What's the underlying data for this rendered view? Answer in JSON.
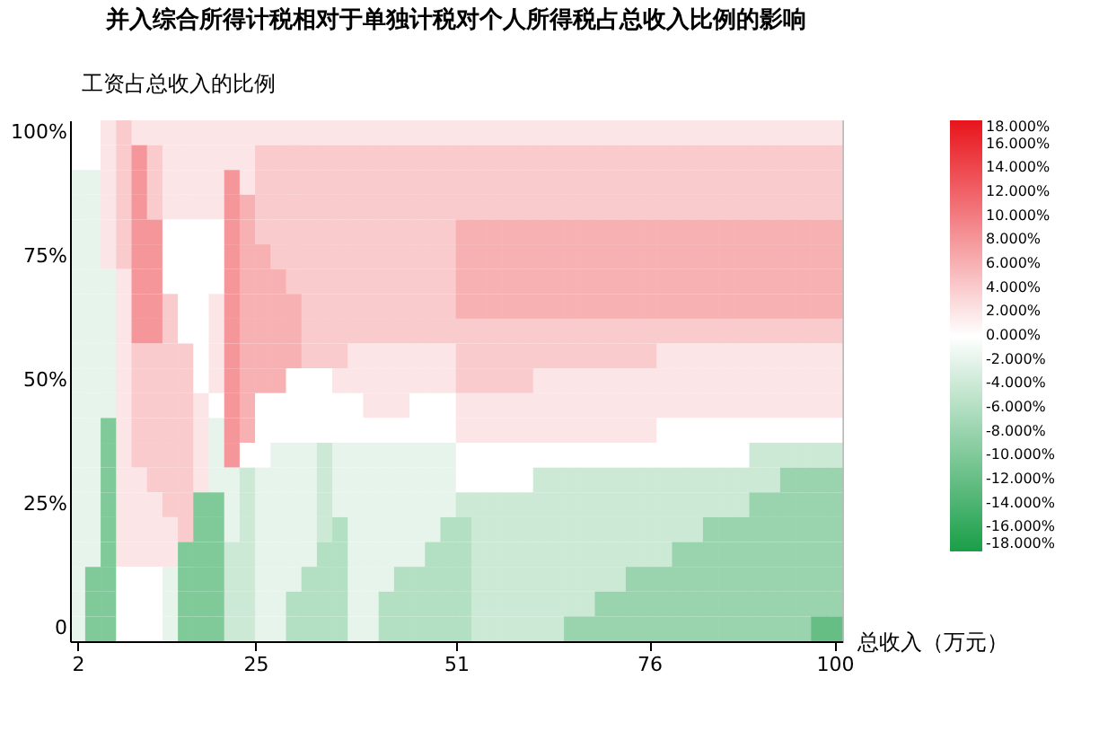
{
  "chart_data": {
    "type": "heatmap",
    "title": "并入综合所得计税相对于单独计税对个人所得税占总收入比例的影响",
    "xlabel": "总收入（万元）",
    "ylabel": "工资占总收入的比例",
    "x": [
      2,
      4,
      6,
      8,
      10,
      12,
      14,
      16,
      18,
      20,
      22,
      24,
      26,
      28,
      30,
      32,
      34,
      36,
      38,
      40,
      42,
      44,
      46,
      48,
      50,
      52,
      54,
      56,
      58,
      60,
      62,
      64,
      66,
      68,
      70,
      72,
      74,
      76,
      78,
      80,
      82,
      84,
      86,
      88,
      90,
      92,
      94,
      96,
      98,
      100
    ],
    "xlim": [
      1,
      101
    ],
    "xticks": [
      2,
      25,
      51,
      76,
      100
    ],
    "y_categories": [
      "100%",
      null,
      null,
      null,
      null,
      "75%",
      null,
      null,
      null,
      null,
      "50%",
      null,
      null,
      null,
      null,
      "25%",
      null,
      null,
      null,
      null,
      "0"
    ],
    "cells": [
      [
        0,
        0,
        2,
        4,
        2,
        2,
        2,
        2,
        2,
        2,
        2,
        2,
        2,
        2,
        2,
        2,
        2,
        2,
        2,
        2,
        2,
        2,
        2,
        2,
        2,
        2,
        2,
        2,
        2,
        2,
        2,
        2,
        2,
        2,
        2,
        2,
        2,
        2,
        2,
        2,
        2,
        2,
        2,
        2,
        2,
        2,
        2,
        2,
        2,
        2
      ],
      [
        0,
        0,
        2,
        4,
        8,
        4,
        2,
        2,
        2,
        2,
        2,
        2,
        4,
        4,
        4,
        4,
        4,
        4,
        4,
        4,
        4,
        4,
        4,
        4,
        4,
        4,
        4,
        4,
        4,
        4,
        4,
        4,
        4,
        4,
        4,
        4,
        4,
        4,
        4,
        4,
        4,
        4,
        4,
        4,
        4,
        4,
        4,
        4,
        4,
        4
      ],
      [
        -2,
        -2,
        2,
        4,
        8,
        4,
        2,
        2,
        2,
        2,
        8,
        2,
        4,
        4,
        4,
        4,
        4,
        4,
        4,
        4,
        4,
        4,
        4,
        4,
        4,
        4,
        4,
        4,
        4,
        4,
        4,
        4,
        4,
        4,
        4,
        4,
        4,
        4,
        4,
        4,
        4,
        4,
        4,
        4,
        4,
        4,
        4,
        4,
        4,
        4
      ],
      [
        -2,
        -2,
        2,
        4,
        8,
        4,
        2,
        2,
        2,
        2,
        8,
        6,
        4,
        4,
        4,
        4,
        4,
        4,
        4,
        4,
        4,
        4,
        4,
        4,
        4,
        4,
        4,
        4,
        4,
        4,
        4,
        4,
        4,
        4,
        4,
        4,
        4,
        4,
        4,
        4,
        4,
        4,
        4,
        4,
        4,
        4,
        4,
        4,
        4,
        4
      ],
      [
        -2,
        -2,
        2,
        4,
        8,
        8,
        0,
        0,
        0,
        0,
        8,
        6,
        4,
        4,
        4,
        4,
        4,
        4,
        4,
        4,
        4,
        4,
        4,
        4,
        4,
        6,
        6,
        6,
        6,
        6,
        6,
        6,
        6,
        6,
        6,
        6,
        6,
        6,
        6,
        6,
        6,
        6,
        6,
        6,
        6,
        6,
        6,
        6,
        6,
        6
      ],
      [
        -2,
        -2,
        2,
        4,
        8,
        8,
        0,
        0,
        0,
        0,
        8,
        6,
        6,
        4,
        4,
        4,
        4,
        4,
        4,
        4,
        4,
        4,
        4,
        4,
        4,
        6,
        6,
        6,
        6,
        6,
        6,
        6,
        6,
        6,
        6,
        6,
        6,
        6,
        6,
        6,
        6,
        6,
        6,
        6,
        6,
        6,
        6,
        6,
        6,
        6
      ],
      [
        -2,
        -2,
        -2,
        2,
        8,
        8,
        0,
        0,
        0,
        0,
        8,
        6,
        6,
        6,
        4,
        4,
        4,
        4,
        4,
        4,
        4,
        4,
        4,
        4,
        4,
        6,
        6,
        6,
        6,
        6,
        6,
        6,
        6,
        6,
        6,
        6,
        6,
        6,
        6,
        6,
        6,
        6,
        6,
        6,
        6,
        6,
        6,
        6,
        6,
        6
      ],
      [
        -2,
        -2,
        -2,
        2,
        8,
        8,
        4,
        0,
        0,
        2,
        8,
        6,
        6,
        6,
        6,
        4,
        4,
        4,
        4,
        4,
        4,
        4,
        4,
        4,
        4,
        6,
        6,
        6,
        6,
        6,
        6,
        6,
        6,
        6,
        6,
        6,
        6,
        6,
        6,
        6,
        6,
        6,
        6,
        6,
        6,
        6,
        6,
        6,
        6,
        6
      ],
      [
        -2,
        -2,
        -2,
        2,
        8,
        8,
        4,
        0,
        0,
        2,
        8,
        6,
        6,
        6,
        6,
        4,
        4,
        4,
        4,
        4,
        4,
        4,
        4,
        4,
        4,
        4,
        4,
        4,
        4,
        4,
        4,
        4,
        4,
        4,
        4,
        4,
        4,
        4,
        4,
        4,
        4,
        4,
        4,
        4,
        4,
        4,
        4,
        4,
        4,
        4
      ],
      [
        -2,
        -2,
        -2,
        2,
        4,
        4,
        4,
        4,
        0,
        2,
        8,
        6,
        6,
        6,
        6,
        4,
        4,
        4,
        2,
        2,
        2,
        2,
        2,
        2,
        2,
        4,
        4,
        4,
        4,
        4,
        4,
        4,
        4,
        4,
        4,
        4,
        4,
        4,
        2,
        2,
        2,
        2,
        2,
        2,
        2,
        2,
        2,
        2,
        2,
        2
      ],
      [
        -2,
        -2,
        -2,
        2,
        4,
        4,
        4,
        4,
        0,
        2,
        8,
        6,
        6,
        6,
        0,
        0,
        0,
        2,
        2,
        2,
        2,
        2,
        2,
        2,
        2,
        4,
        4,
        4,
        4,
        4,
        2,
        2,
        2,
        2,
        2,
        2,
        2,
        2,
        2,
        2,
        2,
        2,
        2,
        2,
        2,
        2,
        2,
        2,
        2,
        2
      ],
      [
        -2,
        -2,
        -2,
        2,
        4,
        4,
        4,
        4,
        2,
        0,
        8,
        6,
        0,
        0,
        0,
        0,
        0,
        0,
        0,
        2,
        2,
        2,
        0,
        0,
        0,
        2,
        2,
        2,
        2,
        2,
        2,
        2,
        2,
        2,
        2,
        2,
        2,
        2,
        2,
        2,
        2,
        2,
        2,
        2,
        2,
        2,
        2,
        2,
        2,
        2
      ],
      [
        -2,
        -2,
        -10,
        2,
        4,
        4,
        4,
        4,
        2,
        -2,
        8,
        6,
        0,
        0,
        0,
        0,
        0,
        0,
        0,
        0,
        0,
        0,
        0,
        0,
        0,
        2,
        2,
        2,
        2,
        2,
        2,
        2,
        2,
        2,
        2,
        2,
        2,
        2,
        0,
        0,
        0,
        0,
        0,
        0,
        0,
        0,
        0,
        0,
        0,
        0
      ],
      [
        -2,
        -2,
        -10,
        2,
        4,
        4,
        4,
        4,
        2,
        -2,
        8,
        0,
        0,
        -2,
        -2,
        -2,
        -4,
        -2,
        -2,
        -2,
        -2,
        -2,
        -2,
        -2,
        -2,
        0,
        0,
        0,
        0,
        0,
        0,
        0,
        0,
        0,
        0,
        0,
        0,
        0,
        0,
        0,
        0,
        0,
        0,
        0,
        -4,
        -4,
        -4,
        -4,
        -4,
        -4
      ],
      [
        -2,
        -2,
        -10,
        2,
        2,
        4,
        4,
        4,
        2,
        -2,
        -2,
        -4,
        -2,
        -2,
        -2,
        -2,
        -4,
        -2,
        -2,
        -2,
        -2,
        -2,
        -2,
        -2,
        -2,
        0,
        0,
        0,
        0,
        0,
        -4,
        -4,
        -4,
        -4,
        -4,
        -4,
        -4,
        -4,
        -4,
        -4,
        -4,
        -4,
        -4,
        -4,
        -4,
        -4,
        -8,
        -8,
        -8,
        -8
      ],
      [
        -2,
        -2,
        -10,
        2,
        2,
        2,
        4,
        4,
        -10,
        -10,
        -2,
        -4,
        -2,
        -2,
        -2,
        -2,
        -4,
        -2,
        -2,
        -2,
        -2,
        -2,
        -2,
        -2,
        -2,
        -4,
        -4,
        -4,
        -4,
        -4,
        -4,
        -4,
        -4,
        -4,
        -4,
        -4,
        -4,
        -4,
        -4,
        -4,
        -4,
        -4,
        -4,
        -4,
        -8,
        -8,
        -8,
        -8,
        -8,
        -8
      ],
      [
        -2,
        -2,
        -10,
        2,
        2,
        2,
        2,
        4,
        -10,
        -10,
        -2,
        -4,
        -2,
        -2,
        -2,
        -2,
        -4,
        -6,
        -2,
        -2,
        -2,
        -2,
        -2,
        -2,
        -6,
        -6,
        -4,
        -4,
        -4,
        -4,
        -4,
        -4,
        -4,
        -4,
        -4,
        -4,
        -4,
        -4,
        -4,
        -4,
        -4,
        -8,
        -8,
        -8,
        -8,
        -8,
        -8,
        -8,
        -8,
        -8
      ],
      [
        -2,
        -2,
        -10,
        2,
        2,
        2,
        2,
        -10,
        -10,
        -10,
        -4,
        -4,
        -2,
        -2,
        -2,
        -2,
        -6,
        -6,
        -2,
        -2,
        -2,
        -2,
        -2,
        -6,
        -6,
        -6,
        -4,
        -4,
        -4,
        -4,
        -4,
        -4,
        -4,
        -4,
        -4,
        -4,
        -4,
        -4,
        -4,
        -8,
        -8,
        -8,
        -8,
        -8,
        -8,
        -8,
        -8,
        -8,
        -8,
        -8
      ],
      [
        -2,
        -10,
        -10,
        0,
        0,
        0,
        -2,
        -10,
        -10,
        -10,
        -4,
        -4,
        -2,
        -2,
        -2,
        -6,
        -6,
        -6,
        -2,
        -2,
        -2,
        -6,
        -6,
        -6,
        -6,
        -6,
        -4,
        -4,
        -4,
        -4,
        -4,
        -4,
        -4,
        -4,
        -4,
        -4,
        -8,
        -8,
        -8,
        -8,
        -8,
        -8,
        -8,
        -8,
        -8,
        -8,
        -8,
        -8,
        -8,
        -8
      ],
      [
        -2,
        -10,
        -10,
        0,
        0,
        0,
        -2,
        -10,
        -10,
        -10,
        -4,
        -4,
        -2,
        -2,
        -6,
        -6,
        -6,
        -6,
        -2,
        -2,
        -6,
        -6,
        -6,
        -6,
        -6,
        -6,
        -4,
        -4,
        -4,
        -4,
        -4,
        -4,
        -4,
        -4,
        -8,
        -8,
        -8,
        -8,
        -8,
        -8,
        -8,
        -8,
        -8,
        -8,
        -8,
        -8,
        -8,
        -8,
        -8,
        -8
      ],
      [
        -2,
        -10,
        -10,
        0,
        0,
        0,
        -2,
        -10,
        -10,
        -10,
        -4,
        -4,
        -2,
        -2,
        -6,
        -6,
        -6,
        -6,
        -2,
        -2,
        -6,
        -6,
        -6,
        -6,
        -6,
        -6,
        -4,
        -4,
        -4,
        -4,
        -4,
        -4,
        -8,
        -8,
        -8,
        -8,
        -8,
        -8,
        -8,
        -8,
        -8,
        -8,
        -8,
        -8,
        -8,
        -8,
        -8,
        -8,
        -12,
        -12
      ]
    ],
    "clim": [
      -18,
      18
    ],
    "cticks": [
      {
        "value": -18,
        "label": "-18.000%"
      },
      {
        "value": -16,
        "label": "-16.000%"
      },
      {
        "value": -14,
        "label": "-14.000%"
      },
      {
        "value": -12,
        "label": "-12.000%"
      },
      {
        "value": -10,
        "label": "-10.000%"
      },
      {
        "value": -8,
        "label": "-8.000%"
      },
      {
        "value": -6,
        "label": "-6.000%"
      },
      {
        "value": -4,
        "label": "-4.000%"
      },
      {
        "value": -2,
        "label": "-2.000%"
      },
      {
        "value": 0,
        "label": "0.000%"
      },
      {
        "value": 2,
        "label": "2.000%"
      },
      {
        "value": 4,
        "label": "4.000%"
      },
      {
        "value": 6,
        "label": "6.000%"
      },
      {
        "value": 8,
        "label": "8.000%"
      },
      {
        "value": 10,
        "label": "10.000%"
      },
      {
        "value": 12,
        "label": "12.000%"
      },
      {
        "value": 14,
        "label": "14.000%"
      },
      {
        "value": 16,
        "label": "16.000%"
      },
      {
        "value": 18,
        "label": "18.000%"
      }
    ],
    "grid": false
  }
}
